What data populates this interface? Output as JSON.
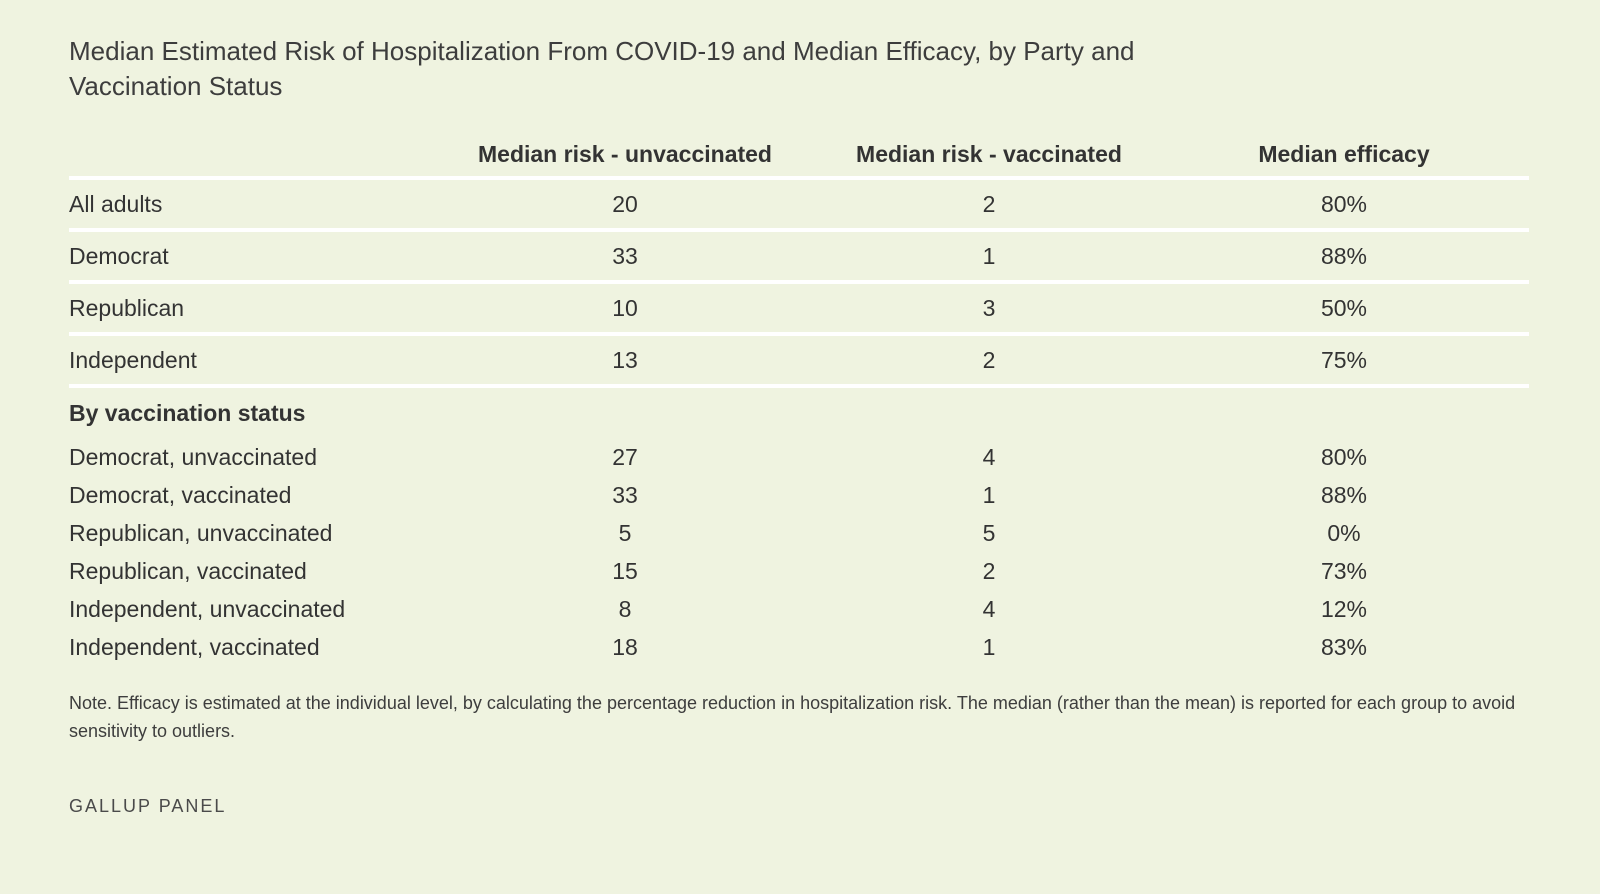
{
  "title": "Median Estimated Risk of Hospitalization From COVID-19 and Median Efficacy, by Party and Vaccination Status",
  "columns": [
    "",
    "Median risk - unvaccinated",
    "Median risk - vaccinated",
    "Median efficacy"
  ],
  "main_rows": [
    {
      "label": "All adults",
      "unvaccinated": "20",
      "vaccinated": "2",
      "efficacy": "80%"
    },
    {
      "label": "Democrat",
      "unvaccinated": "33",
      "vaccinated": "1",
      "efficacy": "88%"
    },
    {
      "label": "Republican",
      "unvaccinated": "10",
      "vaccinated": "3",
      "efficacy": "50%"
    },
    {
      "label": "Independent",
      "unvaccinated": "13",
      "vaccinated": "2",
      "efficacy": "75%"
    }
  ],
  "section_label": "By vaccination status",
  "sub_rows": [
    {
      "label": "Democrat, unvaccinated",
      "unvaccinated": "27",
      "vaccinated": "4",
      "efficacy": "80%"
    },
    {
      "label": "Democrat, vaccinated",
      "unvaccinated": "33",
      "vaccinated": "1",
      "efficacy": "88%"
    },
    {
      "label": "Republican, unvaccinated",
      "unvaccinated": "5",
      "vaccinated": "5",
      "efficacy": "0%"
    },
    {
      "label": "Republican, vaccinated",
      "unvaccinated": "15",
      "vaccinated": "2",
      "efficacy": "73%"
    },
    {
      "label": "Independent, unvaccinated",
      "unvaccinated": "8",
      "vaccinated": "4",
      "efficacy": "12%"
    },
    {
      "label": "Independent, vaccinated",
      "unvaccinated": "18",
      "vaccinated": "1",
      "efficacy": "83%"
    }
  ],
  "note": "Note. Efficacy is estimated at the individual level, by calculating the percentage reduction in hospitalization risk. The median (rather than the mean) is reported for each group to avoid sensitivity to outliers.",
  "source": "GALLUP PANEL",
  "colors": {
    "background": "#eff3e0",
    "text": "#333333",
    "rule": "#ffffff"
  }
}
